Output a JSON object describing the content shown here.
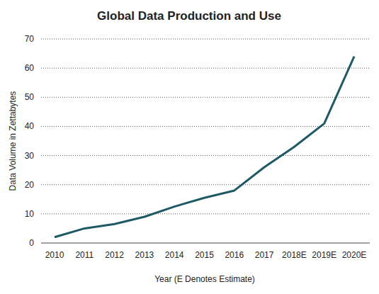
{
  "chart_data": {
    "type": "line",
    "title": "Global Data Production and Use",
    "x_label": "Year (E Denotes Estimate)",
    "y_label": "Data Volume in Zettabytes",
    "categories": [
      "2010",
      "2011",
      "2012",
      "2013",
      "2014",
      "2015",
      "2016",
      "2017",
      "2018E",
      "2019E",
      "2020E"
    ],
    "values": [
      2,
      5,
      6.5,
      9,
      12.5,
      15.5,
      18,
      26,
      33,
      41,
      64
    ],
    "color": "#1d5a66",
    "ylim": [
      0,
      70
    ],
    "yticks": [
      0,
      10,
      20,
      30,
      40,
      50,
      60,
      70
    ],
    "grid": true
  }
}
